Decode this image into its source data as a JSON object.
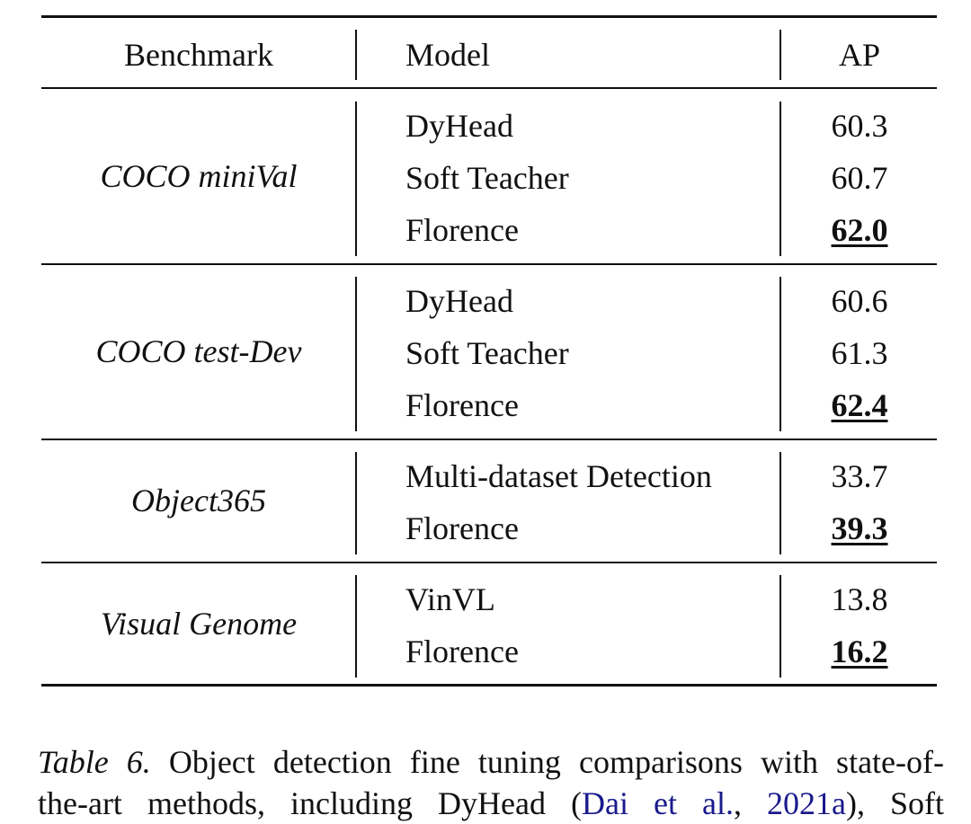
{
  "table": {
    "headers": {
      "benchmark": "Benchmark",
      "model": "Model",
      "ap": "AP"
    },
    "groups": [
      {
        "benchmark": "COCO miniVal",
        "rows": [
          {
            "model": "DyHead",
            "ap": "60.3",
            "best": false
          },
          {
            "model": "Soft Teacher",
            "ap": "60.7",
            "best": false
          },
          {
            "model": "Florence",
            "ap": "62.0",
            "best": true
          }
        ]
      },
      {
        "benchmark": "COCO test-Dev",
        "rows": [
          {
            "model": "DyHead",
            "ap": "60.6",
            "best": false
          },
          {
            "model": "Soft Teacher",
            "ap": "61.3",
            "best": false
          },
          {
            "model": "Florence",
            "ap": "62.4",
            "best": true
          }
        ]
      },
      {
        "benchmark": "Object365",
        "rows": [
          {
            "model": "Multi-dataset Detection",
            "ap": "33.7",
            "best": false
          },
          {
            "model": "Florence",
            "ap": "39.3",
            "best": true
          }
        ]
      },
      {
        "benchmark": "Visual Genome",
        "rows": [
          {
            "model": "VinVL",
            "ap": "13.8",
            "best": false
          },
          {
            "model": "Florence",
            "ap": "16.2",
            "best": true
          }
        ]
      }
    ]
  },
  "caption": {
    "label": "Table 6.",
    "line1_text": " Object detection fine tuning comparisons with state-of-",
    "line2_pre": "the-art methods, including DyHead (",
    "cite_author": "Dai et al.",
    "cite_sep": ", ",
    "cite_year": "2021a",
    "line2_post": "), Soft"
  }
}
